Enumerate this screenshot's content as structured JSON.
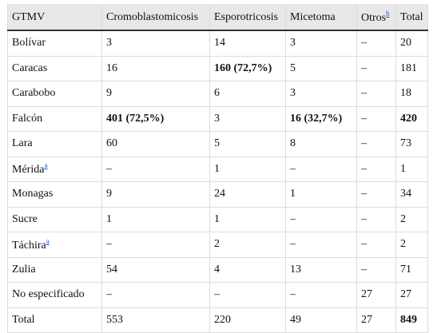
{
  "table": {
    "header": [
      "GTMV",
      "Cromoblastomicosis",
      "Esporotricosis",
      "Micetoma",
      "Otros",
      "Total"
    ],
    "rows": [
      [
        "Bolívar",
        "3",
        "14",
        "3",
        "–",
        "20"
      ],
      [
        "Caracas",
        "16",
        "160 (72,7%)",
        "5",
        "–",
        "181"
      ],
      [
        "Carabobo",
        "9",
        "6",
        "3",
        "–",
        "18"
      ],
      [
        "Falcón",
        "401 (72,5%)",
        "3",
        "16 (32,7%)",
        "–",
        "420"
      ],
      [
        "Lara",
        "60",
        "5",
        "8",
        "–",
        "73"
      ],
      [
        "Mérida",
        "–",
        "1",
        "–",
        "–",
        "1"
      ],
      [
        "Monagas",
        "9",
        "24",
        "1",
        "–",
        "34"
      ],
      [
        "Sucre",
        "1",
        "1",
        "–",
        "–",
        "2"
      ],
      [
        "Táchira",
        "–",
        "2",
        "–",
        "–",
        "2"
      ],
      [
        "Zulia",
        "54",
        "4",
        "13",
        "–",
        "71"
      ],
      [
        "No especificado",
        "–",
        "–",
        "–",
        "27",
        "27"
      ],
      [
        "Total",
        "553",
        "220",
        "49",
        "27",
        "849"
      ]
    ],
    "footnote_marks": [
      "b",
      "a",
      "a"
    ]
  }
}
